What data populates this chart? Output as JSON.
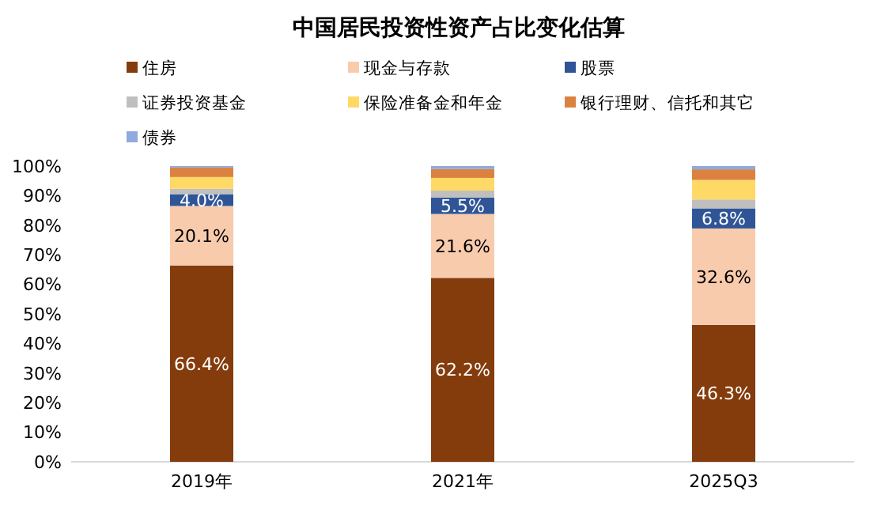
{
  "chart_data": {
    "type": "bar",
    "stacked": true,
    "title": "中国居民投资性资产占比变化估算",
    "categories": [
      "2019年",
      "2021年",
      "2025Q3"
    ],
    "ylim": [
      0,
      100
    ],
    "yticks": [
      {
        "value": 0,
        "label": "0%"
      },
      {
        "value": 10,
        "label": "10%"
      },
      {
        "value": 20,
        "label": "20%"
      },
      {
        "value": 30,
        "label": "30%"
      },
      {
        "value": 40,
        "label": "40%"
      },
      {
        "value": 50,
        "label": "50%"
      },
      {
        "value": 60,
        "label": "60%"
      },
      {
        "value": 70,
        "label": "70%"
      },
      {
        "value": 80,
        "label": "80%"
      },
      {
        "value": 90,
        "label": "90%"
      },
      {
        "value": 100,
        "label": "100%"
      }
    ],
    "legend": "top",
    "series": [
      {
        "name": "住房",
        "color": "#843c0c",
        "values": [
          66.4,
          62.2,
          46.3
        ],
        "value_labels": [
          "66.4%",
          "62.2%",
          "46.3%"
        ]
      },
      {
        "name": "现金与存款",
        "color": "#f8cbad",
        "values": [
          20.1,
          21.6,
          32.6
        ],
        "value_labels": [
          "20.1%",
          "21.6%",
          "32.6%"
        ]
      },
      {
        "name": "股票",
        "color": "#2f5597",
        "values": [
          4.0,
          5.5,
          6.8
        ],
        "value_labels": [
          "4.0%",
          "5.5%",
          "6.8%"
        ]
      },
      {
        "name": "证券投资基金",
        "color": "#bfbfbf",
        "values": [
          1.8,
          2.4,
          3.0
        ]
      },
      {
        "name": "保险准备金和年金",
        "color": "#ffd966",
        "values": [
          4.0,
          4.3,
          6.6
        ]
      },
      {
        "name": "银行理财、信托和其它",
        "color": "#dc8240",
        "values": [
          3.2,
          3.0,
          3.6
        ]
      },
      {
        "name": "债券",
        "color": "#8faadc",
        "values": [
          0.5,
          1.0,
          1.1
        ]
      }
    ]
  }
}
